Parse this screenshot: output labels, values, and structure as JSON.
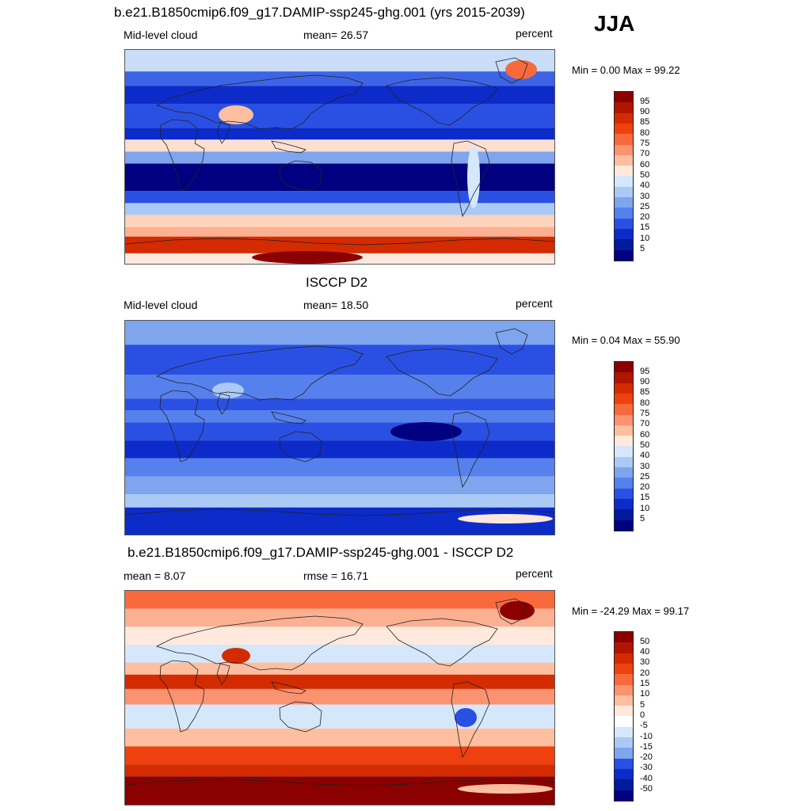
{
  "season": "JJA",
  "panels": [
    {
      "title": "b.e21.B1850cmip6.f09_g17.DAMIP-ssp245-ghg.001 (yrs 2015-2039)",
      "left": "Mid-level cloud",
      "center": "mean=  26.57",
      "right": "percent",
      "minmax": "Min =   0.00 Max =  99.22",
      "colorbar": {
        "labels": [
          "95",
          "90",
          "85",
          "80",
          "75",
          "70",
          "60",
          "50",
          "40",
          "30",
          "25",
          "20",
          "15",
          "10",
          "5"
        ],
        "colors": [
          "#8b0000",
          "#b01500",
          "#d42b00",
          "#ef4010",
          "#f86a3c",
          "#fb9270",
          "#fdbfa0",
          "#ffe9dc",
          "#d5e7fb",
          "#aac9f5",
          "#7ea5ee",
          "#5680ec",
          "#2a50e3",
          "#0d2bc9",
          "#001a9c",
          "#000080"
        ]
      },
      "map_type": "model"
    },
    {
      "title": "ISCCP D2",
      "left": "Mid-level cloud",
      "center": "mean=  18.50",
      "right": "percent",
      "minmax": "Min =   0.04 Max =  55.90",
      "colorbar": {
        "labels": [
          "95",
          "90",
          "85",
          "80",
          "75",
          "70",
          "60",
          "50",
          "40",
          "30",
          "25",
          "20",
          "15",
          "10",
          "5"
        ],
        "colors": [
          "#8b0000",
          "#b01500",
          "#d42b00",
          "#ef4010",
          "#f86a3c",
          "#fb9270",
          "#fdbfa0",
          "#ffe9dc",
          "#d5e7fb",
          "#aac9f5",
          "#7ea5ee",
          "#5680ec",
          "#2a50e3",
          "#0d2bc9",
          "#001a9c",
          "#000080"
        ]
      },
      "map_type": "obs"
    },
    {
      "title": "b.e21.B1850cmip6.f09_g17.DAMIP-ssp245-ghg.001 - ISCCP D2",
      "left": "mean =   8.07",
      "center": "rmse =  16.71",
      "right": "percent",
      "minmax": "Min = -24.29 Max =  99.17",
      "colorbar": {
        "labels": [
          "50",
          "40",
          "30",
          "20",
          "15",
          "10",
          "5",
          "0",
          "-5",
          "-10",
          "-15",
          "-20",
          "-30",
          "-40",
          "-50"
        ],
        "colors": [
          "#8b0000",
          "#b01500",
          "#d42b00",
          "#ef4010",
          "#f86a3c",
          "#fb9270",
          "#fdbfa0",
          "#ffe9dc",
          "#ffffff",
          "#d5e7fb",
          "#aac9f5",
          "#7ea5ee",
          "#2a50e3",
          "#0d2bc9",
          "#001a9c",
          "#000080"
        ]
      },
      "map_type": "diff"
    }
  ]
}
